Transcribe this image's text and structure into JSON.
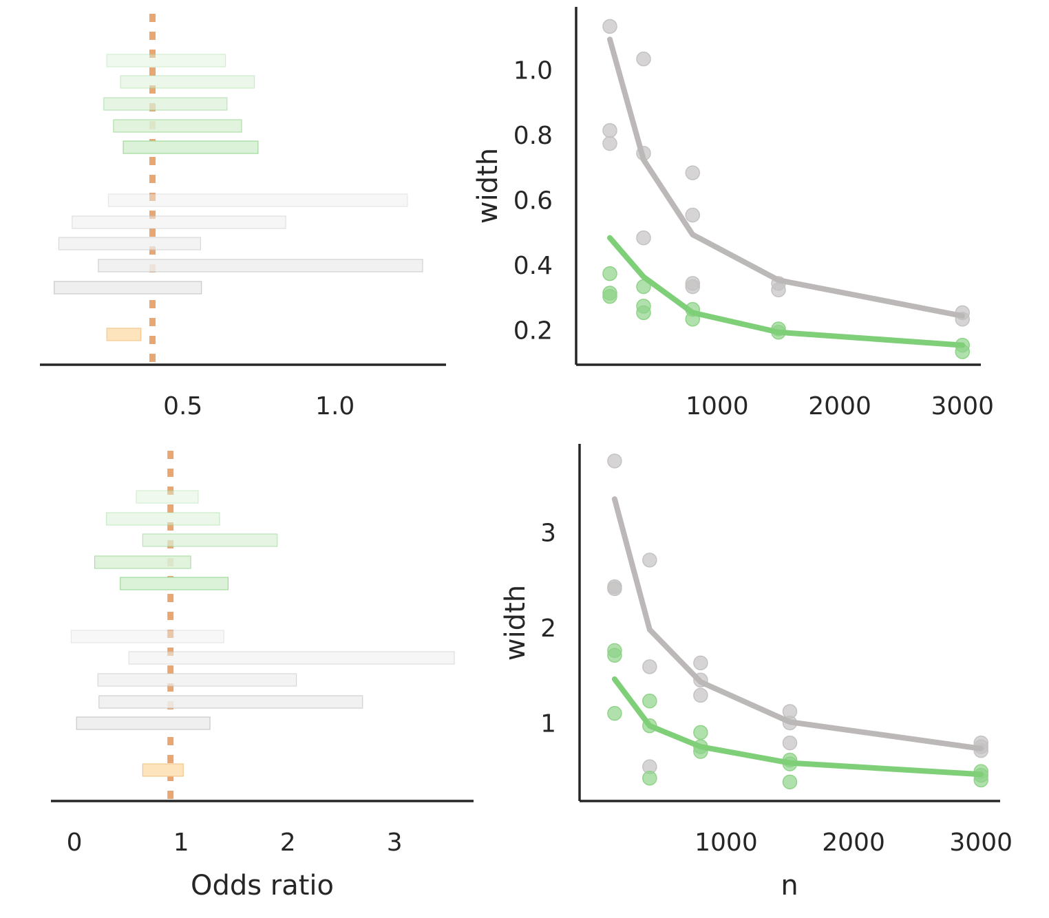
{
  "colors": {
    "axis": "#262626",
    "text": "#262626",
    "reference": "#e8a672",
    "gray_line": "#bdb8b8",
    "green_line": "#7ecf78",
    "gray_point": "#c4c2c2",
    "green_point": "#8fd389",
    "green_bar_fill": "#dcf2d8",
    "green_bar_edge": "#9fd99a",
    "gray_bar_fill": "#efefef",
    "gray_bar_edge": "#c8c8c8",
    "orange_bar_fill": "#fde4bd",
    "orange_bar_edge": "#f5c78d"
  },
  "labels": {
    "odds_ratio_xlabel": "Odds ratio",
    "n_xlabel": "n"
  },
  "chart_data": [
    {
      "id": "top-left-intervals",
      "type": "interval",
      "title": "",
      "xlabel": "",
      "ylabel": "",
      "xlim": [
        0.03,
        1.365
      ],
      "xticks": [
        0.5,
        1.0
      ],
      "xtick_labels": [
        "0.5",
        "1.0"
      ],
      "reference_line": 0.4,
      "groups": [
        {
          "name": "green",
          "intervals": [
            {
              "lo": 0.25,
              "hi": 0.64,
              "opacity": 0.45
            },
            {
              "lo": 0.295,
              "hi": 0.735,
              "opacity": 0.55
            },
            {
              "lo": 0.24,
              "hi": 0.645,
              "opacity": 0.7
            },
            {
              "lo": 0.272,
              "hi": 0.693,
              "opacity": 0.85
            },
            {
              "lo": 0.304,
              "hi": 0.747,
              "opacity": 1.0
            }
          ]
        },
        {
          "name": "gray",
          "intervals": [
            {
              "lo": 0.255,
              "hi": 1.238,
              "opacity": 0.45
            },
            {
              "lo": 0.136,
              "hi": 0.838,
              "opacity": 0.55
            },
            {
              "lo": 0.092,
              "hi": 0.558,
              "opacity": 0.7
            },
            {
              "lo": 0.222,
              "hi": 1.288,
              "opacity": 0.85
            },
            {
              "lo": 0.077,
              "hi": 0.561,
              "opacity": 1.0
            }
          ]
        },
        {
          "name": "orange",
          "intervals": [
            {
              "lo": 0.25,
              "hi": 0.362,
              "opacity": 1.0
            }
          ]
        }
      ]
    },
    {
      "id": "top-right-width",
      "type": "line",
      "title": "",
      "xlabel": "",
      "ylabel": "width",
      "xlim": [
        -150,
        3150
      ],
      "ylim": [
        0.1,
        1.2
      ],
      "xticks": [
        1000,
        2000,
        3000
      ],
      "xtick_labels": [
        "1000",
        "2000",
        "3000"
      ],
      "yticks": [
        0.2,
        0.4,
        0.6,
        0.8,
        1.0
      ],
      "ytick_labels": [
        "0.2",
        "0.4",
        "0.6",
        "0.8",
        "1.0"
      ],
      "series": [
        {
          "name": "gray",
          "x": [
            125,
            400,
            800,
            1500,
            3000
          ],
          "y": [
            1.1,
            0.73,
            0.5,
            0.36,
            0.25
          ],
          "points": [
            [
              125,
              1.14
            ],
            [
              125,
              0.82
            ],
            [
              125,
              0.78
            ],
            [
              400,
              1.04
            ],
            [
              400,
              0.75
            ],
            [
              400,
              0.49
            ],
            [
              800,
              0.69
            ],
            [
              800,
              0.56
            ],
            [
              800,
              0.35
            ],
            [
              800,
              0.34
            ],
            [
              1500,
              0.35
            ],
            [
              1500,
              0.33
            ],
            [
              3000,
              0.26
            ],
            [
              3000,
              0.24
            ]
          ]
        },
        {
          "name": "green",
          "x": [
            125,
            400,
            800,
            1500,
            3000
          ],
          "y": [
            0.49,
            0.37,
            0.26,
            0.2,
            0.16
          ],
          "points": [
            [
              125,
              0.38
            ],
            [
              125,
              0.32
            ],
            [
              125,
              0.31
            ],
            [
              400,
              0.34
            ],
            [
              400,
              0.28
            ],
            [
              400,
              0.26
            ],
            [
              800,
              0.27
            ],
            [
              800,
              0.24
            ],
            [
              1500,
              0.21
            ],
            [
              1500,
              0.2
            ],
            [
              3000,
              0.16
            ],
            [
              3000,
              0.14
            ]
          ]
        }
      ]
    },
    {
      "id": "bottom-left-intervals",
      "type": "interval",
      "title": "",
      "xlabel": "Odds ratio",
      "ylabel": "",
      "xlim": [
        -0.22,
        3.74
      ],
      "xticks": [
        0,
        1,
        2,
        3
      ],
      "xtick_labels": [
        "0",
        "1",
        "2",
        "3"
      ],
      "reference_line": 0.9,
      "groups": [
        {
          "name": "green",
          "intervals": [
            {
              "lo": 0.58,
              "hi": 1.16,
              "opacity": 0.45
            },
            {
              "lo": 0.3,
              "hi": 1.36,
              "opacity": 0.55
            },
            {
              "lo": 0.64,
              "hi": 1.9,
              "opacity": 0.7
            },
            {
              "lo": 0.19,
              "hi": 1.09,
              "opacity": 0.85
            },
            {
              "lo": 0.43,
              "hi": 1.44,
              "opacity": 1.0
            }
          ]
        },
        {
          "name": "gray",
          "intervals": [
            {
              "lo": -0.03,
              "hi": 1.4,
              "opacity": 0.45
            },
            {
              "lo": 0.51,
              "hi": 3.56,
              "opacity": 0.55
            },
            {
              "lo": 0.22,
              "hi": 2.08,
              "opacity": 0.7
            },
            {
              "lo": 0.23,
              "hi": 2.7,
              "opacity": 0.85
            },
            {
              "lo": 0.02,
              "hi": 1.27,
              "opacity": 1.0
            }
          ]
        },
        {
          "name": "orange",
          "intervals": [
            {
              "lo": 0.64,
              "hi": 1.02,
              "opacity": 1.0
            }
          ]
        }
      ]
    },
    {
      "id": "bottom-right-width",
      "type": "line",
      "title": "",
      "xlabel": "n",
      "ylabel": "width",
      "xlim": [
        -150,
        3150
      ],
      "ylim": [
        0.2,
        3.95
      ],
      "xticks": [
        1000,
        2000,
        3000
      ],
      "xtick_labels": [
        "1000",
        "2000",
        "3000"
      ],
      "yticks": [
        1,
        2,
        3
      ],
      "ytick_labels": [
        "1",
        "2",
        "3"
      ],
      "series": [
        {
          "name": "gray",
          "x": [
            125,
            400,
            800,
            1500,
            3000
          ],
          "y": [
            3.37,
            2.0,
            1.45,
            1.03,
            0.75
          ],
          "points": [
            [
              125,
              3.77
            ],
            [
              125,
              2.45
            ],
            [
              125,
              2.43
            ],
            [
              400,
              2.73
            ],
            [
              400,
              1.61
            ],
            [
              400,
              0.56
            ],
            [
              800,
              1.65
            ],
            [
              800,
              1.47
            ],
            [
              800,
              1.31
            ],
            [
              1500,
              1.14
            ],
            [
              1500,
              1.02
            ],
            [
              1500,
              0.81
            ],
            [
              3000,
              0.81
            ],
            [
              3000,
              0.77
            ],
            [
              3000,
              0.73
            ]
          ]
        },
        {
          "name": "green",
          "x": [
            125,
            400,
            800,
            1500,
            3000
          ],
          "y": [
            1.48,
            0.99,
            0.77,
            0.6,
            0.48
          ],
          "points": [
            [
              125,
              1.78
            ],
            [
              125,
              1.73
            ],
            [
              125,
              1.12
            ],
            [
              400,
              1.25
            ],
            [
              400,
              0.99
            ],
            [
              400,
              0.44
            ],
            [
              800,
              0.92
            ],
            [
              800,
              0.77
            ],
            [
              800,
              0.72
            ],
            [
              1500,
              0.63
            ],
            [
              1500,
              0.59
            ],
            [
              1500,
              0.4
            ],
            [
              3000,
              0.51
            ],
            [
              3000,
              0.47
            ],
            [
              3000,
              0.42
            ]
          ]
        }
      ]
    }
  ]
}
